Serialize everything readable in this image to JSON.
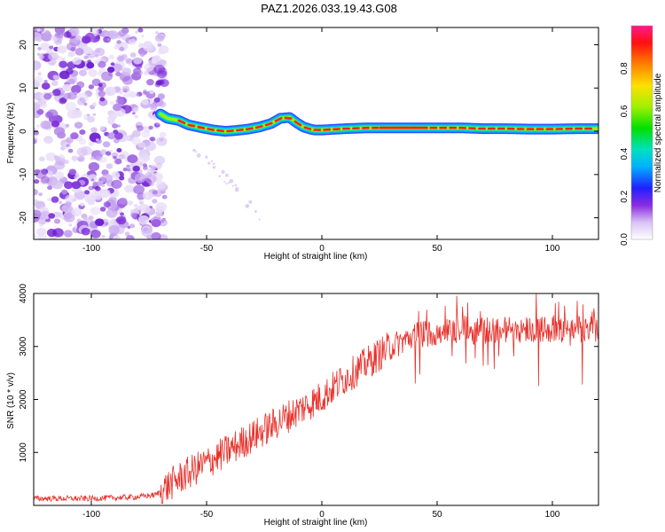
{
  "title": "PAZ1.2026.033.19.43.G08",
  "chart_data": [
    {
      "type": "heatmap",
      "name": "spectrogram",
      "xlabel": "Height of straight line (km)",
      "ylabel": "Frequency (Hz)",
      "xlim": [
        -125,
        120
      ],
      "ylim": [
        -25,
        24
      ],
      "xticks": [
        -100,
        -50,
        0,
        50,
        100
      ],
      "yticks": [
        -20,
        -10,
        0,
        10,
        20
      ],
      "noise_region_x": [
        -125,
        -70
      ],
      "ridge": {
        "x": [
          -70,
          -67,
          -62,
          -58,
          -52,
          -47,
          -42,
          -37,
          -32,
          -27,
          -22,
          -18,
          -14,
          -11,
          -8,
          -5,
          -3,
          0,
          10,
          20,
          30,
          40,
          50,
          60,
          70,
          80,
          90,
          100,
          110,
          120
        ],
        "freq": [
          4,
          3,
          2.5,
          1.5,
          0.8,
          0.3,
          0,
          0.2,
          0.5,
          1,
          1.8,
          3,
          3.2,
          2,
          1,
          0.5,
          0.3,
          0.3,
          0.6,
          0.8,
          0.8,
          0.8,
          0.8,
          0.8,
          0.6,
          0.6,
          0.5,
          0.5,
          0.6,
          0.6
        ]
      },
      "colorbar": {
        "label": "Normalized spectral amplitude",
        "ticks": [
          "0.0",
          "0.2",
          "0.4",
          "0.6",
          "0.8"
        ],
        "tick_values": [
          0.0,
          0.2,
          0.4,
          0.6,
          0.8
        ],
        "range": [
          0,
          1
        ]
      }
    },
    {
      "type": "line",
      "name": "snr",
      "xlabel": "Height of straight line (km)",
      "ylabel": "SNR (10 * v/v)",
      "xlim": [
        -125,
        120
      ],
      "ylim": [
        0,
        4000
      ],
      "xticks": [
        -100,
        -50,
        0,
        50,
        100
      ],
      "yticks": [
        1000,
        2000,
        3000,
        4000
      ],
      "color": "#e8302a",
      "trend": {
        "x": [
          -125,
          -100,
          -80,
          -72,
          -65,
          -60,
          -50,
          -40,
          -30,
          -20,
          -10,
          0,
          10,
          20,
          30,
          40,
          50,
          60,
          70,
          80,
          90,
          100,
          110,
          120
        ],
        "y": [
          130,
          130,
          160,
          200,
          420,
          560,
          800,
          1050,
          1300,
          1550,
          1800,
          2050,
          2400,
          2700,
          3000,
          3200,
          3280,
          3300,
          3300,
          3320,
          3330,
          3330,
          3330,
          3340
        ]
      }
    }
  ]
}
